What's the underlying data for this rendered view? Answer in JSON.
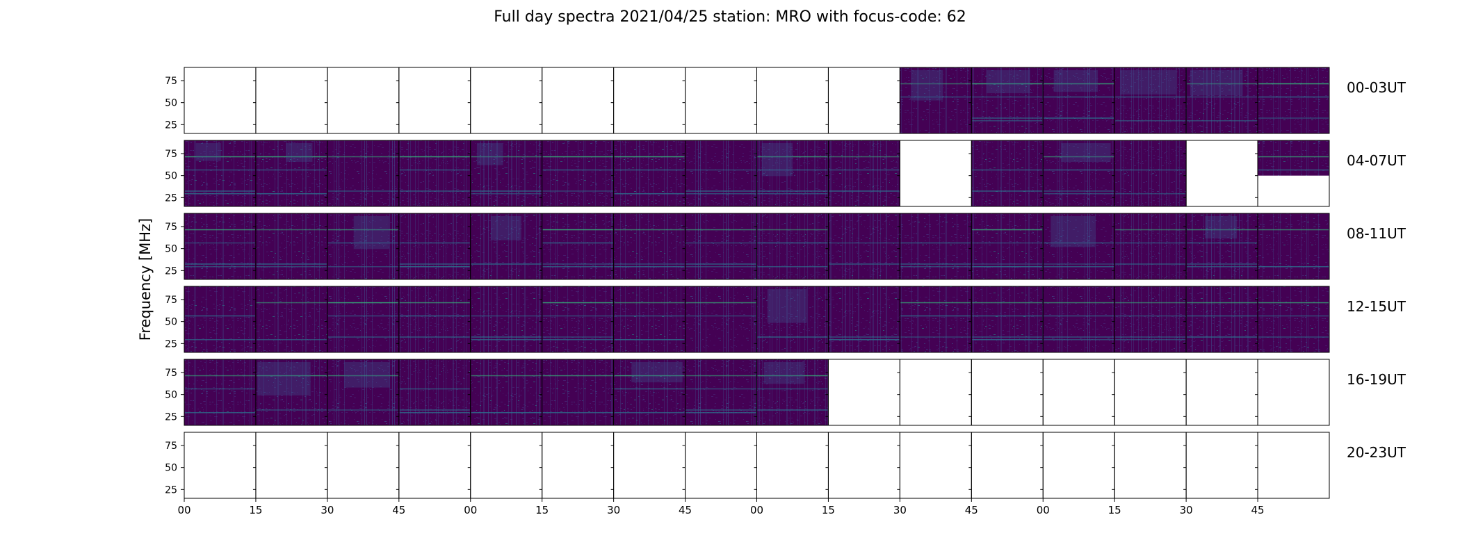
{
  "figure": {
    "title": "Full day spectra 2021/04/25 station: MRO with focus-code: 62",
    "ylabel": "Frequency [MHz]"
  },
  "chart_data": {
    "type": "heatmap",
    "title": "Full day spectra 2021/04/25 station: MRO with focus-code: 62",
    "ylabel": "Frequency [MHz]",
    "y_ticks": [
      "25",
      "50",
      "75"
    ],
    "y_tick_values": [
      25,
      50,
      75
    ],
    "ylim": [
      15,
      90
    ],
    "x_ticks": [
      "00",
      "15",
      "30",
      "45",
      "00",
      "15",
      "30",
      "45",
      "00",
      "15",
      "30",
      "45",
      "00",
      "15",
      "30",
      "45"
    ],
    "colormap": [
      "#440154",
      "#3b528b",
      "#21918c",
      "#5ec962",
      "#fde725"
    ],
    "rows": [
      {
        "label": "00-03UT",
        "filled": [
          0,
          0,
          0,
          0,
          0,
          0,
          0,
          0,
          0,
          0,
          1,
          1,
          1,
          1,
          1,
          1
        ],
        "partial_band": null
      },
      {
        "label": "04-07UT",
        "filled": [
          1,
          1,
          1,
          1,
          1,
          1,
          1,
          1,
          1,
          1,
          0,
          1,
          1,
          1,
          0,
          2
        ],
        "partial_band": [
          50,
          90
        ]
      },
      {
        "label": "08-11UT",
        "filled": [
          1,
          1,
          1,
          1,
          1,
          1,
          1,
          1,
          1,
          1,
          1,
          1,
          1,
          1,
          1,
          1
        ],
        "partial_band": null
      },
      {
        "label": "12-15UT",
        "filled": [
          1,
          1,
          1,
          1,
          1,
          1,
          1,
          1,
          1,
          1,
          1,
          1,
          1,
          1,
          1,
          1
        ],
        "partial_band": null
      },
      {
        "label": "16-19UT",
        "filled": [
          1,
          1,
          1,
          1,
          1,
          1,
          1,
          1,
          1,
          0,
          0,
          0,
          0,
          0,
          0,
          0
        ],
        "partial_band": null
      },
      {
        "label": "20-23UT",
        "filled": [
          0,
          0,
          0,
          0,
          0,
          0,
          0,
          0,
          0,
          0,
          0,
          0,
          0,
          0,
          0,
          0
        ],
        "partial_band": null
      }
    ],
    "grid": false,
    "legend": false
  }
}
